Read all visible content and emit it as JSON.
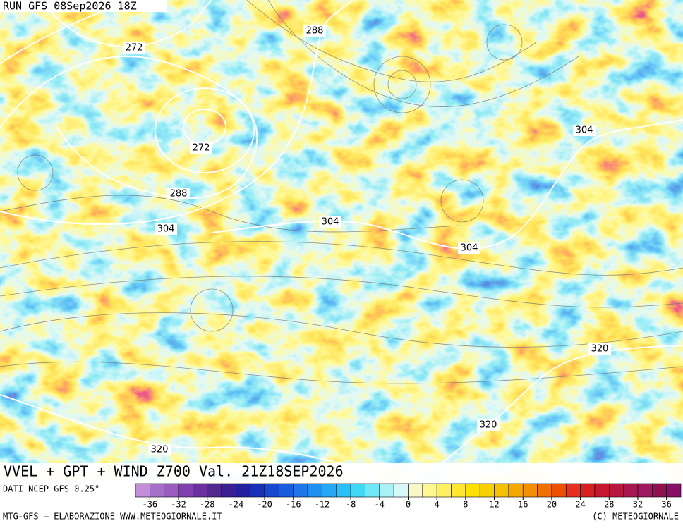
{
  "header": "RUN GFS 08Sep2026 18Z",
  "contour_labels": [
    "288",
    "272",
    "272",
    "288",
    "304",
    "304",
    "304",
    "304",
    "320",
    "320",
    "320"
  ],
  "title": "VVEL + GPT + WIND Z700 Val. 21Z18SEP2026",
  "source": "DATI NCEP GFS 0.25°",
  "colorbar": {
    "range": [
      -38,
      38
    ],
    "ticks": [
      -36,
      -32,
      -28,
      -24,
      -20,
      -16,
      -12,
      -8,
      -4,
      0,
      4,
      8,
      12,
      16,
      20,
      24,
      28,
      32,
      36
    ],
    "colors": [
      "#c38fd8",
      "#a66fc7",
      "#9a5cc0",
      "#8040b0",
      "#6a30a0",
      "#502890",
      "#3a2090",
      "#2020a0",
      "#1830b8",
      "#1848d0",
      "#1a5ee0",
      "#1e78ea",
      "#2090f0",
      "#22a8f5",
      "#28c0f5",
      "#40d8f5",
      "#70e8f5",
      "#a8f2f5",
      "#d8f8f8",
      "#f8f8c8",
      "#fff890",
      "#fff060",
      "#ffe830",
      "#ffe000",
      "#f8d000",
      "#f5c000",
      "#f5a800",
      "#f59000",
      "#f07000",
      "#ec5000",
      "#e83020",
      "#d82020",
      "#c81830",
      "#b81840",
      "#a81850",
      "#a01860",
      "#901050",
      "#881068"
    ]
  },
  "footer_left": "MTG-GFS — ELABORAZIONE WWW.METEOGIORNALE.IT",
  "footer_right": "(C) METEOGIORNALE"
}
